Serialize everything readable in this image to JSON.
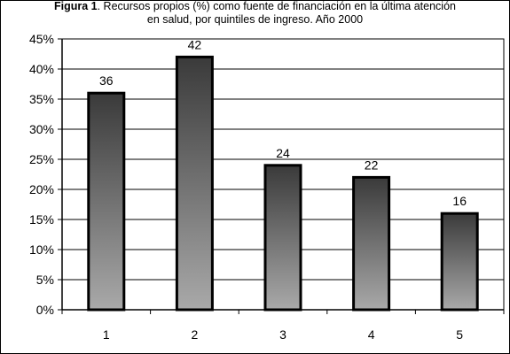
{
  "figure": {
    "label": "Figura 1",
    "caption_line1": ". Recursos propios  (%) como fuente de financiación en la última atención",
    "caption_line2": "en salud, por quintiles de ingreso. Año  2000"
  },
  "chart_data": {
    "type": "bar",
    "categories": [
      "1",
      "2",
      "3",
      "4",
      "5"
    ],
    "values": [
      36,
      42,
      24,
      22,
      16
    ],
    "data_labels": [
      "36",
      "42",
      "24",
      "22",
      "16"
    ],
    "ylim": [
      0,
      45
    ],
    "yticks": [
      0,
      5,
      10,
      15,
      20,
      25,
      30,
      35,
      40,
      45
    ],
    "ytick_labels": [
      "0%",
      "5%",
      "10%",
      "15%",
      "20%",
      "25%",
      "30%",
      "35%",
      "40%",
      "45%"
    ],
    "xlabel": "",
    "ylabel": "",
    "grid": true,
    "legend": "none",
    "colors": {
      "bar_top": "#3a3a3a",
      "bar_bottom": "#a9a9a9",
      "bar_edge": "#000000",
      "grid": "#000000"
    }
  }
}
